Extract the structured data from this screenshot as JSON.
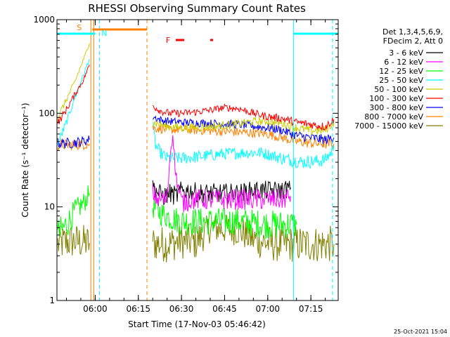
{
  "chart_data": {
    "type": "line",
    "title": "RHESSI Observing Summary Count Rates",
    "xlabel": "Start Time (17-Nov-03 05:46:42)",
    "ylabel": "Count Rate (s⁻¹ detector⁻¹)",
    "y_scale": "log",
    "ylim": [
      1,
      1000
    ],
    "xlim": [
      "05:46:42",
      "07:24:30"
    ],
    "x_ticks": [
      "06:00",
      "06:15",
      "06:30",
      "06:45",
      "07:00",
      "07:15"
    ],
    "y_ticks": [
      "1",
      "10",
      "100",
      "1000"
    ],
    "grid": false,
    "legend_position": "right",
    "legend_header": [
      "Det 1,3,4,5,6,9,",
      "FDecim 2, Att 0"
    ],
    "series": [
      {
        "name": "3 - 6 keV",
        "color": "#000000",
        "x": [
          "06:20",
          "06:22",
          "06:24",
          "06:26",
          "06:28",
          "06:30",
          "06:33",
          "06:36",
          "06:40",
          "06:45",
          "06:50",
          "06:55",
          "07:00",
          "07:05",
          "07:08"
        ],
        "values": [
          17,
          14,
          13,
          14,
          13,
          15,
          15,
          14,
          14,
          14,
          14,
          15,
          15,
          15,
          16
        ]
      },
      {
        "name": "6 - 12 keV",
        "color": "#ff00ff",
        "x": [
          "06:20",
          "06:22",
          "06:24",
          "06:25",
          "06:26",
          "06:27",
          "06:28",
          "06:29",
          "06:30",
          "06:33",
          "06:36",
          "06:40",
          "06:45",
          "06:50",
          "06:55",
          "07:00",
          "07:05",
          "07:08"
        ],
        "values": [
          14,
          12,
          12,
          12,
          35,
          60,
          22,
          16,
          11,
          12,
          12,
          12,
          12,
          12,
          12,
          12,
          12,
          13
        ]
      },
      {
        "name": "12 - 25 keV",
        "color": "#00ff00",
        "x": [
          "05:47",
          "05:50",
          "05:53",
          "05:56",
          "05:58",
          "06:20",
          "06:23",
          "06:25",
          "06:27",
          "06:30",
          "06:40",
          "06:50",
          "07:00",
          "07:10"
        ],
        "values": [
          5,
          6.5,
          9,
          11,
          14,
          10,
          8.5,
          8,
          7.5,
          7,
          7,
          7,
          6.5,
          6.5
        ]
      },
      {
        "name": "25 - 50 keV",
        "color": "#00ffff",
        "x": [
          "05:47",
          "05:50",
          "05:53",
          "05:56",
          "05:58",
          "06:20",
          "06:21",
          "06:23",
          "06:25",
          "06:30",
          "06:38",
          "06:45",
          "06:52",
          "06:58",
          "07:05",
          "07:12",
          "07:18",
          "07:20",
          "07:22",
          "07:23"
        ],
        "values": [
          47,
          80,
          150,
          260,
          380,
          80,
          45,
          37,
          33,
          33,
          35,
          37,
          38,
          38,
          33,
          30,
          31,
          32,
          38,
          45
        ]
      },
      {
        "name": "50 - 100 keV",
        "color": "#cccc00",
        "x": [
          "05:47",
          "05:50",
          "05:53",
          "05:56",
          "05:58",
          "06:20",
          "06:25",
          "06:30",
          "06:40",
          "06:50",
          "06:55",
          "07:00",
          "07:05",
          "07:10",
          "07:15",
          "07:20",
          "07:23"
        ],
        "values": [
          90,
          140,
          220,
          380,
          560,
          80,
          72,
          70,
          72,
          77,
          82,
          82,
          78,
          70,
          65,
          66,
          80
        ]
      },
      {
        "name": "100 - 300 keV",
        "color": "#ff0000",
        "x": [
          "05:47",
          "05:50",
          "05:53",
          "05:56",
          "05:58",
          "06:20",
          "06:23",
          "06:26",
          "06:30",
          "06:35",
          "06:40",
          "06:45",
          "06:50",
          "06:55",
          "07:00",
          "07:05",
          "07:10",
          "07:15",
          "07:20",
          "07:23"
        ],
        "values": [
          78,
          110,
          160,
          230,
          330,
          120,
          105,
          100,
          100,
          103,
          108,
          115,
          112,
          100,
          92,
          88,
          80,
          76,
          72,
          86
        ]
      },
      {
        "name": "300 - 800 keV",
        "color": "#0000ff",
        "x": [
          "05:47",
          "05:52",
          "05:58",
          "06:20",
          "06:23",
          "06:26",
          "06:30",
          "06:40",
          "06:50",
          "07:00",
          "07:05",
          "07:10",
          "07:15",
          "07:20",
          "07:23"
        ],
        "values": [
          48,
          48,
          52,
          92,
          84,
          82,
          80,
          78,
          76,
          70,
          66,
          58,
          55,
          52,
          55
        ]
      },
      {
        "name": "800 - 7000 keV",
        "color": "#ff8000",
        "x": [
          "05:47",
          "05:52",
          "05:58",
          "06:20",
          "06:23",
          "06:26",
          "06:30",
          "06:40",
          "06:50",
          "07:00",
          "07:05",
          "07:10",
          "07:15",
          "07:20",
          "07:23"
        ],
        "values": [
          46,
          46,
          47,
          70,
          68,
          67,
          67,
          65,
          63,
          60,
          55,
          50,
          48,
          47,
          47
        ]
      },
      {
        "name": "7000 - 15000 keV",
        "color": "#808000",
        "x": [
          "05:47",
          "05:50",
          "05:53",
          "05:56",
          "05:58",
          "06:20",
          "06:25",
          "06:30",
          "06:35",
          "06:40",
          "06:45",
          "06:50",
          "06:55",
          "07:00",
          "07:05",
          "07:10",
          "07:15",
          "07:20",
          "07:23"
        ],
        "values": [
          4,
          4.2,
          4.3,
          4.2,
          4.1,
          4.1,
          4.0,
          4.3,
          4.2,
          6,
          5.8,
          5.6,
          4.5,
          4.1,
          4.0,
          4.0,
          4.0,
          4.0,
          4.0
        ]
      }
    ],
    "annotations": {
      "saa_label": "S",
      "night_label": "N",
      "flare_label": "F",
      "saa_bar": {
        "start": "05:59",
        "end": "06:18",
        "color": "#ff8000"
      },
      "night_bars": [
        {
          "start": "05:46:42",
          "end": "06:00",
          "color": "#00ffff"
        },
        {
          "start": "07:09",
          "end": "07:24:30",
          "color": "#00ffff"
        }
      ],
      "flare_marks": [
        {
          "start": "06:28",
          "end": "06:31",
          "color": "#ff0000"
        },
        {
          "start": "06:40",
          "end": "06:41",
          "color": "#ff0000"
        }
      ],
      "vertical_lines": [
        {
          "time": "05:46:42",
          "color": "#00ffff",
          "style": "solid"
        },
        {
          "time": "05:58:30",
          "color": "#ff8000",
          "style": "solid"
        },
        {
          "time": "05:59:30",
          "color": "#ff8000",
          "style": "solid"
        },
        {
          "time": "06:01:30",
          "color": "#00ffff",
          "style": "dashed"
        },
        {
          "time": "06:18",
          "color": "#ff8000",
          "style": "dashed"
        },
        {
          "time": "07:09",
          "color": "#00ffff",
          "style": "solid"
        },
        {
          "time": "07:22:30",
          "color": "#00ffff",
          "style": "dashed"
        }
      ]
    }
  },
  "footer": {
    "timestamp": "25-Oct-2021 15:04"
  }
}
